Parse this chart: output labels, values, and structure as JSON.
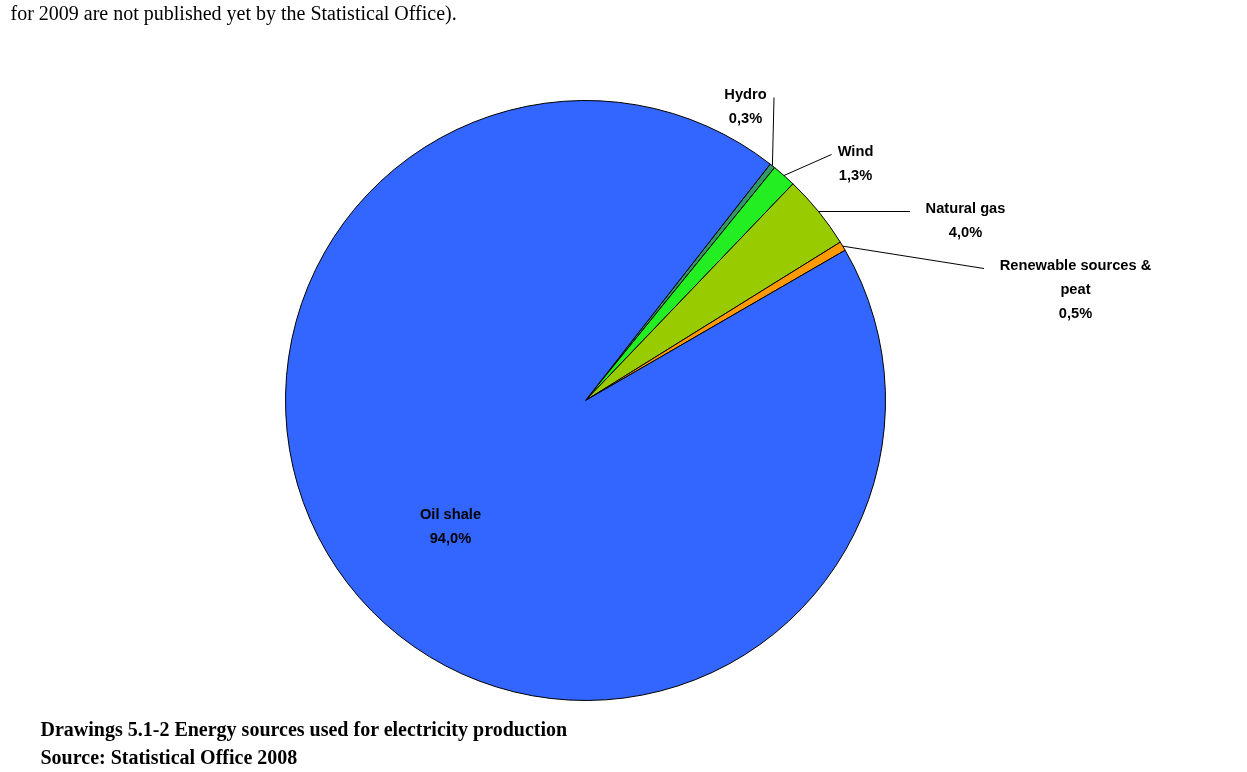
{
  "chart_data": {
    "type": "pie",
    "categories": [
      "Hydro",
      "Wind",
      "Natural gas",
      "Renewable sources & peat",
      "Oil shale"
    ],
    "values": [
      0.3,
      1.3,
      4.0,
      0.5,
      94.0
    ],
    "value_labels": [
      "0,3%",
      "1,3%",
      "4,0%",
      "0,5%",
      "94,0%"
    ],
    "colors": [
      "#339966",
      "#22ee22",
      "#99cc00",
      "#ff9900",
      "#3366ff"
    ],
    "annotations": [
      "for 2009 are not published yet by the Statistical Office).",
      "Drawings 5.1-2 Energy sources used for electricity production",
      "Source: Statistical Office 2008"
    ]
  }
}
